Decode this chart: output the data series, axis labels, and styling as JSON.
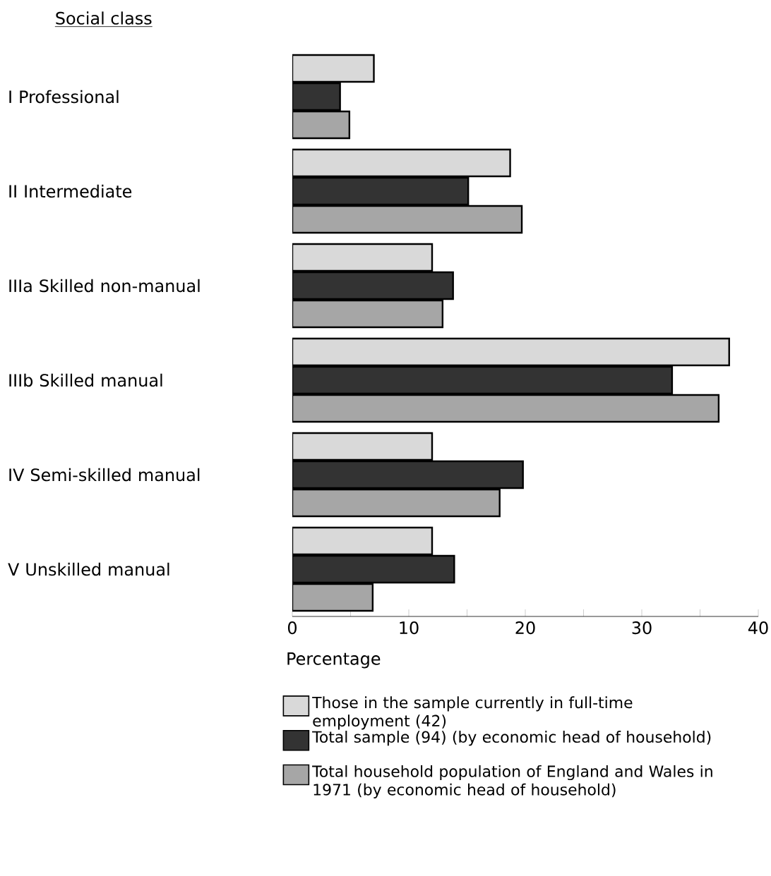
{
  "chart_data": {
    "type": "bar",
    "orientation": "horizontal",
    "ylabel": "Social class",
    "xlabel": "Percentage",
    "categories": [
      "I Professional",
      "II Intermediate",
      "IIIa Skilled non-manual",
      "IIIb Skilled manual",
      "IV Semi-skilled manual",
      "V Unskilled manual"
    ],
    "series": [
      {
        "name": "Those in the sample currently in full-time employment (42)",
        "color": "#d9d9d9",
        "values": [
          7,
          18.7,
          12,
          37.5,
          12,
          12
        ]
      },
      {
        "name": "Total sample (94) (by economic head of household)",
        "color": "#333333",
        "values": [
          4.1,
          15.1,
          13.8,
          32.6,
          19.8,
          13.9
        ]
      },
      {
        "name": "Total household population of England and Wales in 1971 (by economic head of household)",
        "color": "#a6a6a6",
        "values": [
          4.9,
          19.7,
          12.9,
          36.6,
          17.8,
          6.9
        ]
      }
    ],
    "xlim": [
      0,
      40
    ],
    "xticks": [
      0,
      {
        "value": 5,
        "label": null
      },
      10,
      {
        "value": 15,
        "label": null
      },
      20,
      {
        "value": 25,
        "label": null
      },
      30,
      {
        "value": 35,
        "label": null
      },
      40
    ],
    "grid": false,
    "legend": "bottom"
  }
}
